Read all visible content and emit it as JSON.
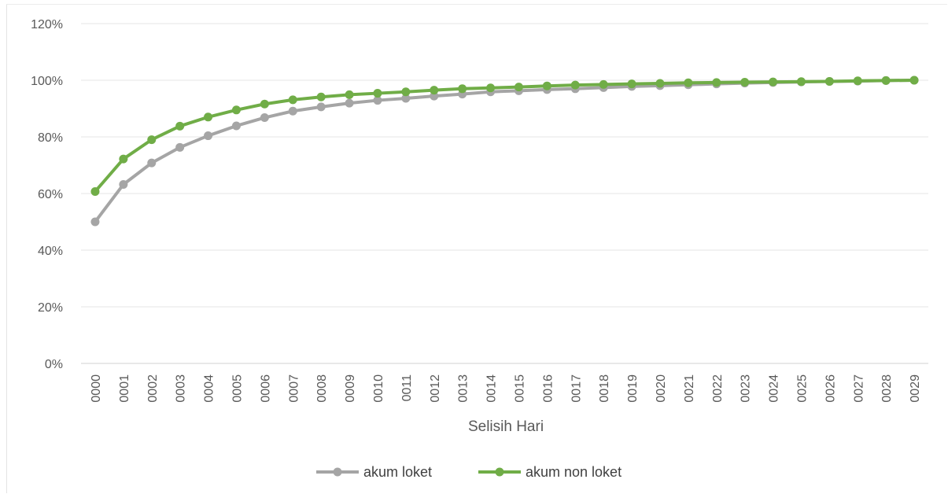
{
  "chart_data": {
    "type": "line",
    "title": "",
    "xlabel": "Selisih Hari",
    "ylabel": "",
    "ylim": [
      0,
      120
    ],
    "y_ticks": [
      "0%",
      "20%",
      "40%",
      "60%",
      "80%",
      "100%",
      "120%"
    ],
    "y_tick_values": [
      0,
      20,
      40,
      60,
      80,
      100,
      120
    ],
    "grid": true,
    "legend_position": "bottom",
    "categories": [
      "0000",
      "0001",
      "0002",
      "0003",
      "0004",
      "0005",
      "0006",
      "0007",
      "0008",
      "0009",
      "0010",
      "0011",
      "0012",
      "0013",
      "0014",
      "0015",
      "0016",
      "0017",
      "0018",
      "0019",
      "0020",
      "0021",
      "0022",
      "0023",
      "0024",
      "0025",
      "0026",
      "0027",
      "0028",
      "0029"
    ],
    "series": [
      {
        "name": "akum loket",
        "color": "#a5a5a5",
        "values": [
          50.0,
          63.2,
          70.8,
          76.3,
          80.4,
          83.9,
          86.8,
          89.1,
          90.6,
          91.9,
          92.9,
          93.6,
          94.4,
          95.1,
          95.9,
          96.3,
          96.7,
          97.0,
          97.4,
          97.8,
          98.1,
          98.4,
          98.7,
          99.0,
          99.2,
          99.4,
          99.6,
          99.7,
          99.9,
          100.0
        ]
      },
      {
        "name": "akum non loket",
        "color": "#70ad47",
        "values": [
          60.7,
          72.2,
          79.0,
          83.8,
          87.0,
          89.5,
          91.6,
          93.1,
          94.1,
          94.9,
          95.4,
          95.9,
          96.5,
          97.0,
          97.3,
          97.6,
          98.0,
          98.3,
          98.5,
          98.7,
          98.9,
          99.1,
          99.2,
          99.3,
          99.4,
          99.5,
          99.6,
          99.8,
          99.9,
          100.0
        ]
      }
    ]
  }
}
